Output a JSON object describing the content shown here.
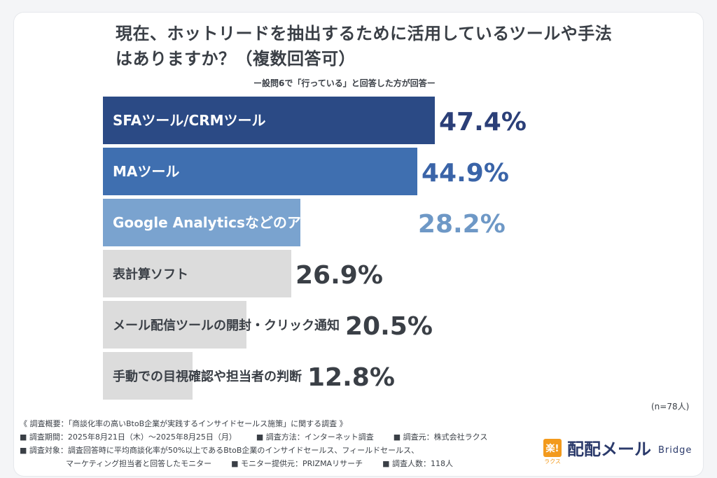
{
  "title": "現在、ホットリードを抽出するために活用しているツールや手法はありますか？（複数回答可）",
  "subtitle": "ー設問6で「行っている」と回答した方が回答ー",
  "n_label": "(n=78人)",
  "chart_data": {
    "type": "bar",
    "orientation": "horizontal",
    "unit": "%",
    "xlim": [
      0,
      77
    ],
    "categories": [
      "SFAツール/CRMツール",
      "MAツール",
      "Google Analyticsなどのアクセス解析ツール",
      "表計算ソフト",
      "メール配信ツールの開封・クリック通知",
      "手動での目視確認や担当者の判断"
    ],
    "values": [
      47.4,
      44.9,
      28.2,
      26.9,
      20.5,
      12.8
    ],
    "value_labels": [
      "47.4%",
      "44.9%",
      "28.2%",
      "26.9%",
      "20.5%",
      "12.8%"
    ],
    "bar_colors": [
      "#2b4a85",
      "#3f6fb0",
      "#7aa3cf",
      "#dcdcdc",
      "#dcdcdc",
      "#dcdcdc"
    ],
    "label_colors": [
      "#ffffff",
      "#ffffff",
      "#ffffff",
      "#3a3f46",
      "#3a3f46",
      "#3a3f46"
    ],
    "value_colors": [
      "#2b3f78",
      "#3a64a8",
      "#6e98c6",
      "#3a3f46",
      "#3a3f46",
      "#3a3f46"
    ]
  },
  "footer": {
    "line1": "《 調査概要：「商談化率の高いBtoB企業が実践するインサイドセールス施策」に関する調査 》",
    "line2": [
      "■ 調査期間：2025年8月21日（木）〜2025年8月25日（月）",
      "■ 調査方法：インターネット調査",
      "■ 調査元：株式会社ラクス"
    ],
    "line3": "■ 調査対象：調査回答時に平均商談化率が50%以上であるBtoB企業のインサイドセールス、フィールドセールス、",
    "line4": [
      "マーケティング担当者と回答したモニター",
      "■ モニター提供元：PRIZMAリサーチ",
      "■ 調査人数：118人"
    ]
  },
  "logo": {
    "mark": "楽!",
    "mark_sub": "ラクス",
    "name": "配配メール",
    "suffix": "Bridge"
  }
}
